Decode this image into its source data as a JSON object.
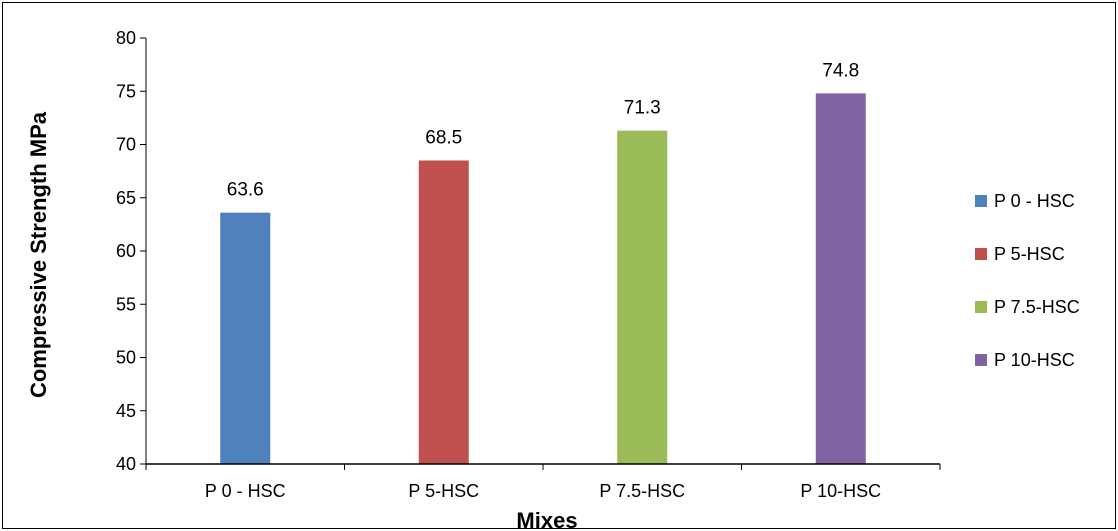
{
  "chart_data": {
    "type": "bar",
    "categories": [
      "P 0 - HSC",
      "P 5-HSC",
      "P 7.5-HSC",
      "P 10-HSC"
    ],
    "values": [
      63.6,
      68.5,
      71.3,
      74.8
    ],
    "data_labels": [
      "63.6",
      "68.5",
      "71.3",
      "74.8"
    ],
    "colors": [
      "#4f81bd",
      "#c0504d",
      "#9bbb59",
      "#8064a2"
    ],
    "xlabel": "Mixes",
    "ylabel": "Compressive Strength MPa",
    "ylim": [
      40,
      80
    ],
    "yticks": [
      "40",
      "45",
      "50",
      "55",
      "60",
      "65",
      "70",
      "75",
      "80"
    ],
    "grid": false,
    "legend": {
      "placement": "right",
      "entries": [
        "P 0 - HSC",
        "P 5-HSC",
        "P 7.5-HSC",
        "P 10-HSC"
      ]
    }
  }
}
